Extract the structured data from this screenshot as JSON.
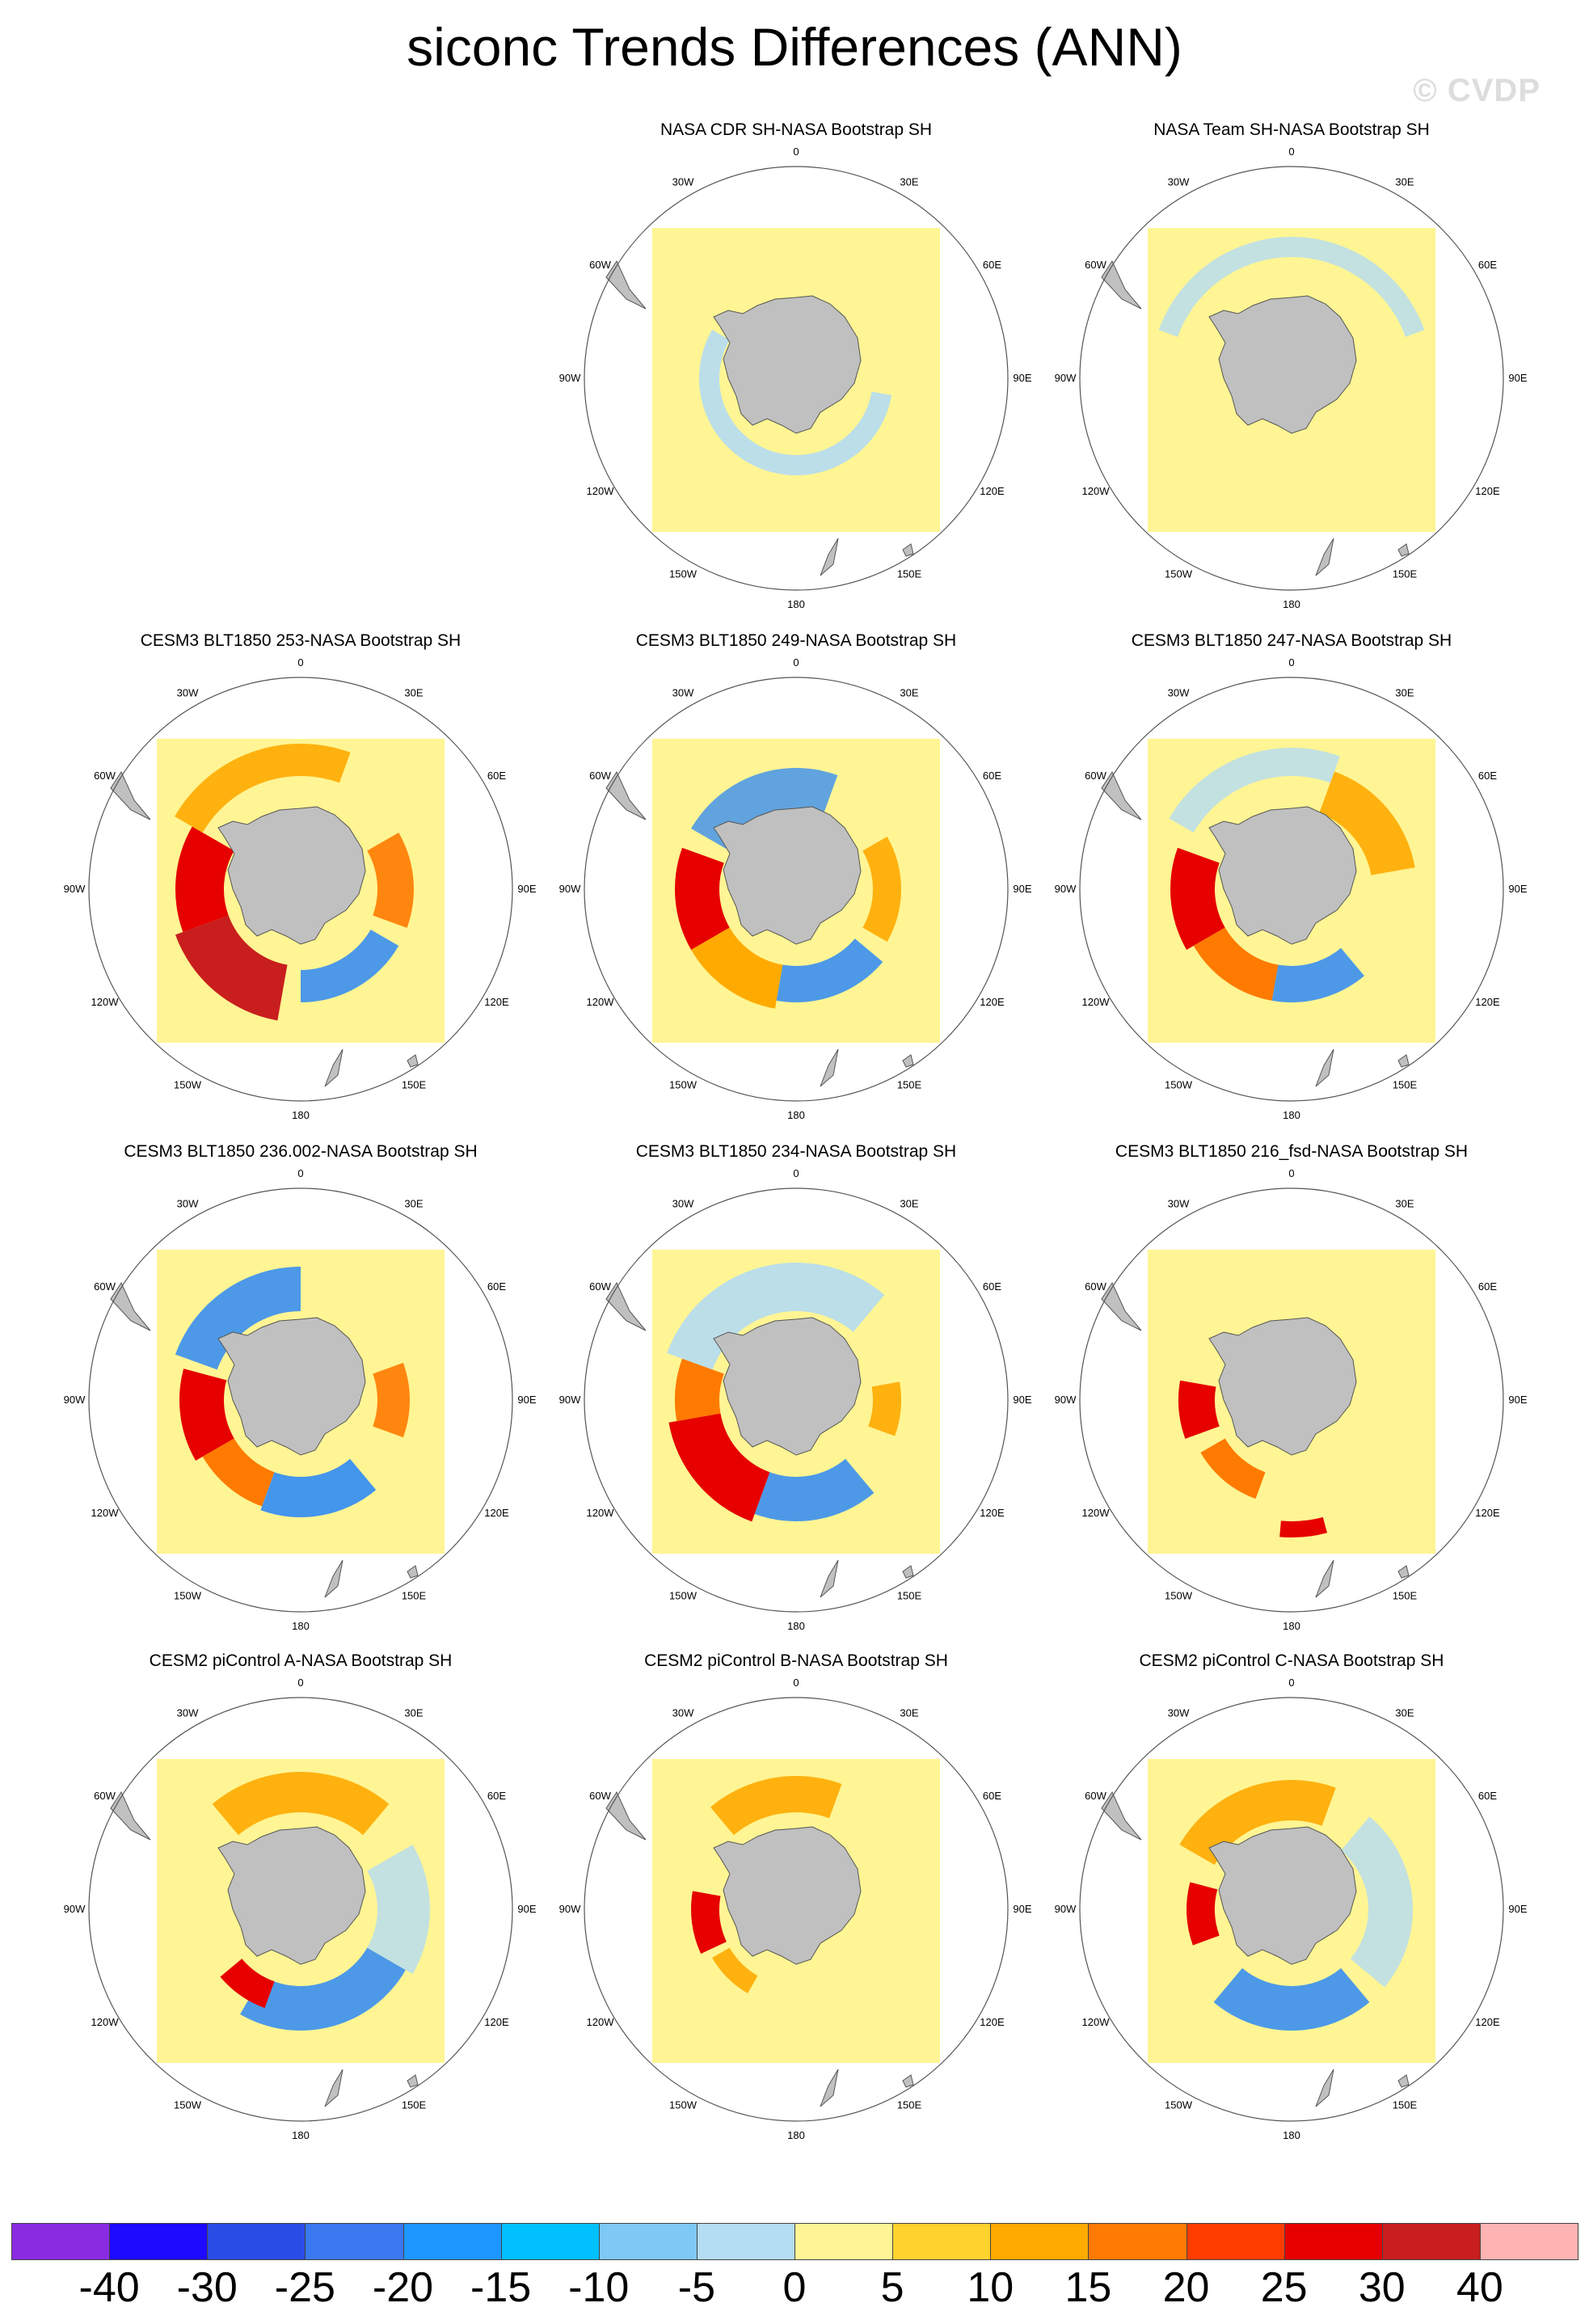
{
  "title": "siconc Trends Differences (ANN)",
  "watermark": "© CVDP",
  "lon_labels": [
    "0",
    "30E",
    "60E",
    "90E",
    "120E",
    "150E",
    "180",
    "150W",
    "120W",
    "90W",
    "60W",
    "30W"
  ],
  "panels": [
    {
      "title": "NASA CDR SH-NASA Bootstrap SH",
      "scheme": "obsA"
    },
    {
      "title": "NASA Team SH-NASA Bootstrap SH",
      "scheme": "obsB"
    },
    {
      "title": "CESM3 BLT1850 253-NASA Bootstrap SH",
      "scheme": "warmStrong"
    },
    {
      "title": "CESM3 BLT1850 249-NASA Bootstrap SH",
      "scheme": "warmMixed"
    },
    {
      "title": "CESM3 BLT1850 247-NASA Bootstrap SH",
      "scheme": "warmMid"
    },
    {
      "title": "CESM3 BLT1850 236.002-NASA Bootstrap SH",
      "scheme": "mixedA"
    },
    {
      "title": "CESM3 BLT1850 234-NASA Bootstrap SH",
      "scheme": "mixedB"
    },
    {
      "title": "CESM3 BLT1850 216_fsd-NASA Bootstrap SH",
      "scheme": "coolMixed"
    },
    {
      "title": "CESM2 piControl A-NASA Bootstrap SH",
      "scheme": "ctrlA"
    },
    {
      "title": "CESM2 piControl B-NASA Bootstrap SH",
      "scheme": "ctrlB"
    },
    {
      "title": "CESM2 piControl C-NASA Bootstrap SH",
      "scheme": "ctrlC"
    }
  ],
  "colorbar": {
    "colors": [
      "#8a2be2",
      "#1e0aff",
      "#2a4ce6",
      "#3a78f0",
      "#1e96ff",
      "#00c0ff",
      "#7ec8f4",
      "#b4dcf2",
      "#fff594",
      "#ffd22e",
      "#ffaa00",
      "#ff7a00",
      "#ff3c00",
      "#e60000",
      "#c81e1e",
      "#ffb4b4"
    ],
    "labels": [
      "-40",
      "-30",
      "-25",
      "-20",
      "-15",
      "-10",
      "-5",
      "0",
      "5",
      "10",
      "15",
      "20",
      "25",
      "30",
      "40"
    ]
  },
  "colors": {
    "land": "#c0c0c0",
    "ocean_zero": "#fff594",
    "small_neg": "#b4dcf2",
    "neg": "#7ec8f4",
    "blue": "#3a8ff0",
    "orange": "#ffaa00",
    "dark_orange": "#ff7a00",
    "red": "#e60000",
    "dark_red": "#c81e1e"
  }
}
